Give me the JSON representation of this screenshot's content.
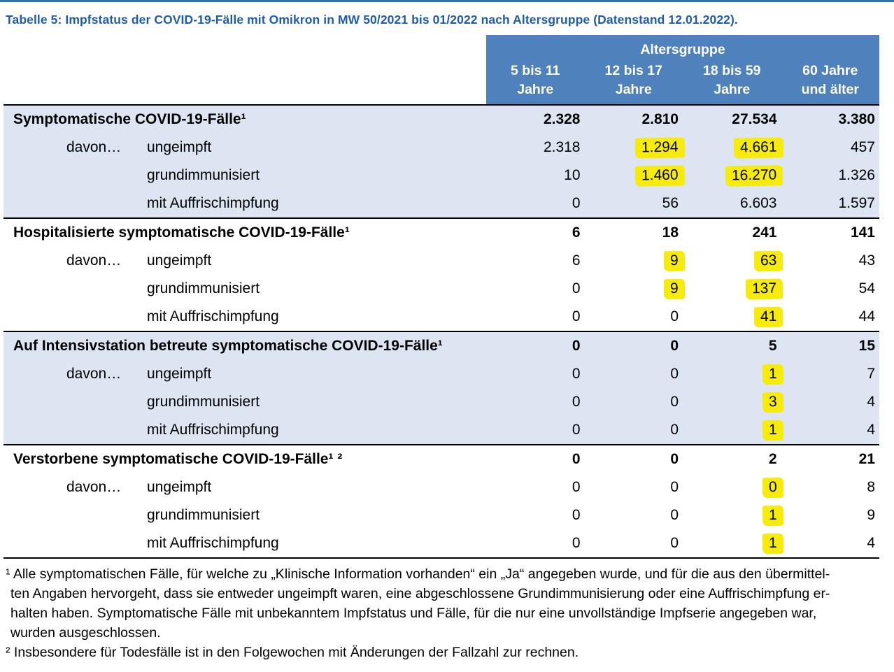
{
  "page": {
    "title": "Tabelle 5: Impfstatus der COVID-19-Fälle mit Omikron in MW 50/2021 bis 01/2022 nach Altersgruppe (Datenstand 12.01.2022)."
  },
  "colors": {
    "header_bg": "#4F81BD",
    "shaded_section_bg": "#DCE5F1",
    "highlight_yellow": "#F6EB0B",
    "title_blue": "#1F5CA9",
    "top_rule_blue": "#2E74B5"
  },
  "table": {
    "header": {
      "group_label": "Altersgruppe",
      "columns": [
        {
          "line1": "5 bis 11",
          "line2": "Jahre"
        },
        {
          "line1": "12 bis 17",
          "line2": "Jahre"
        },
        {
          "line1": "18 bis 59",
          "line2": "Jahre"
        },
        {
          "line1": "60 Jahre",
          "line2": "und älter"
        }
      ]
    },
    "labels": {
      "davon": "davon…"
    },
    "sections": [
      {
        "title": "Symptomatische COVID-19-Fälle¹",
        "shaded": true,
        "total": [
          "2.328",
          "2.810",
          "27.534",
          "3.380"
        ],
        "total_highlights": [
          false,
          false,
          false,
          false
        ],
        "rows": [
          {
            "label": "ungeimpft",
            "values": [
              "2.318",
              "1.294",
              "4.661",
              "457"
            ],
            "highlights": [
              false,
              true,
              true,
              false
            ]
          },
          {
            "label": "grundimmunisiert",
            "values": [
              "10",
              "1.460",
              "16.270",
              "1.326"
            ],
            "highlights": [
              false,
              true,
              true,
              false
            ]
          },
          {
            "label": "mit Auffrischimpfung",
            "values": [
              "0",
              "56",
              "6.603",
              "1.597"
            ],
            "highlights": [
              false,
              false,
              false,
              false
            ]
          }
        ]
      },
      {
        "title": "Hospitalisierte symptomatische COVID-19-Fälle¹",
        "shaded": false,
        "total": [
          "6",
          "18",
          "241",
          "141"
        ],
        "total_highlights": [
          false,
          false,
          false,
          false
        ],
        "rows": [
          {
            "label": "ungeimpft",
            "values": [
              "6",
              "9",
              "63",
              "43"
            ],
            "highlights": [
              false,
              true,
              true,
              false
            ]
          },
          {
            "label": "grundimmunisiert",
            "values": [
              "0",
              "9",
              "137",
              "54"
            ],
            "highlights": [
              false,
              true,
              true,
              false
            ]
          },
          {
            "label": "mit Auffrischimpfung",
            "values": [
              "0",
              "0",
              "41",
              "44"
            ],
            "highlights": [
              false,
              false,
              true,
              false
            ]
          }
        ]
      },
      {
        "title": "Auf Intensivstation betreute symptomatische COVID-19-Fälle¹",
        "shaded": true,
        "total": [
          "0",
          "0",
          "5",
          "15"
        ],
        "total_highlights": [
          false,
          false,
          false,
          false
        ],
        "rows": [
          {
            "label": "ungeimpft",
            "values": [
              "0",
              "0",
              "1",
              "7"
            ],
            "highlights": [
              false,
              false,
              true,
              false
            ]
          },
          {
            "label": "grundimmunisiert",
            "values": [
              "0",
              "0",
              "3",
              "4"
            ],
            "highlights": [
              false,
              false,
              true,
              false
            ]
          },
          {
            "label": "mit Auffrischimpfung",
            "values": [
              "0",
              "0",
              "1",
              "4"
            ],
            "highlights": [
              false,
              false,
              true,
              false
            ]
          }
        ]
      },
      {
        "title": "Verstorbene symptomatische COVID-19-Fälle¹ ²",
        "shaded": false,
        "total": [
          "0",
          "0",
          "2",
          "21"
        ],
        "total_highlights": [
          false,
          false,
          false,
          false
        ],
        "rows": [
          {
            "label": "ungeimpft",
            "values": [
              "0",
              "0",
              "0",
              "8"
            ],
            "highlights": [
              false,
              false,
              true,
              false
            ]
          },
          {
            "label": "grundimmunisiert",
            "values": [
              "0",
              "0",
              "1",
              "9"
            ],
            "highlights": [
              false,
              false,
              true,
              false
            ]
          },
          {
            "label": "mit Auffrischimpfung",
            "values": [
              "0",
              "0",
              "1",
              "4"
            ],
            "highlights": [
              false,
              false,
              true,
              false
            ]
          }
        ]
      }
    ]
  },
  "footnotes": {
    "f1_line1": "¹ Alle symptomatischen Fälle, für welche zu „Klinische Information vorhanden“ ein „Ja“ angegeben wurde, und für die aus den übermittel-",
    "f1_line2": "ten Angaben hervorgeht, dass sie entweder ungeimpft waren, eine abgeschlossene Grundimmunisierung oder eine Auffrischimpfung er-",
    "f1_line3": "halten haben. Symptomatische Fälle mit unbekanntem Impfstatus und Fälle, für die nur eine unvollständige Impfserie angegeben war,",
    "f1_line4": "wurden ausgeschlossen.",
    "f2": "² Insbesondere für Todesfälle ist in den Folgewochen mit Änderungen der Fallzahl zur rechnen."
  }
}
